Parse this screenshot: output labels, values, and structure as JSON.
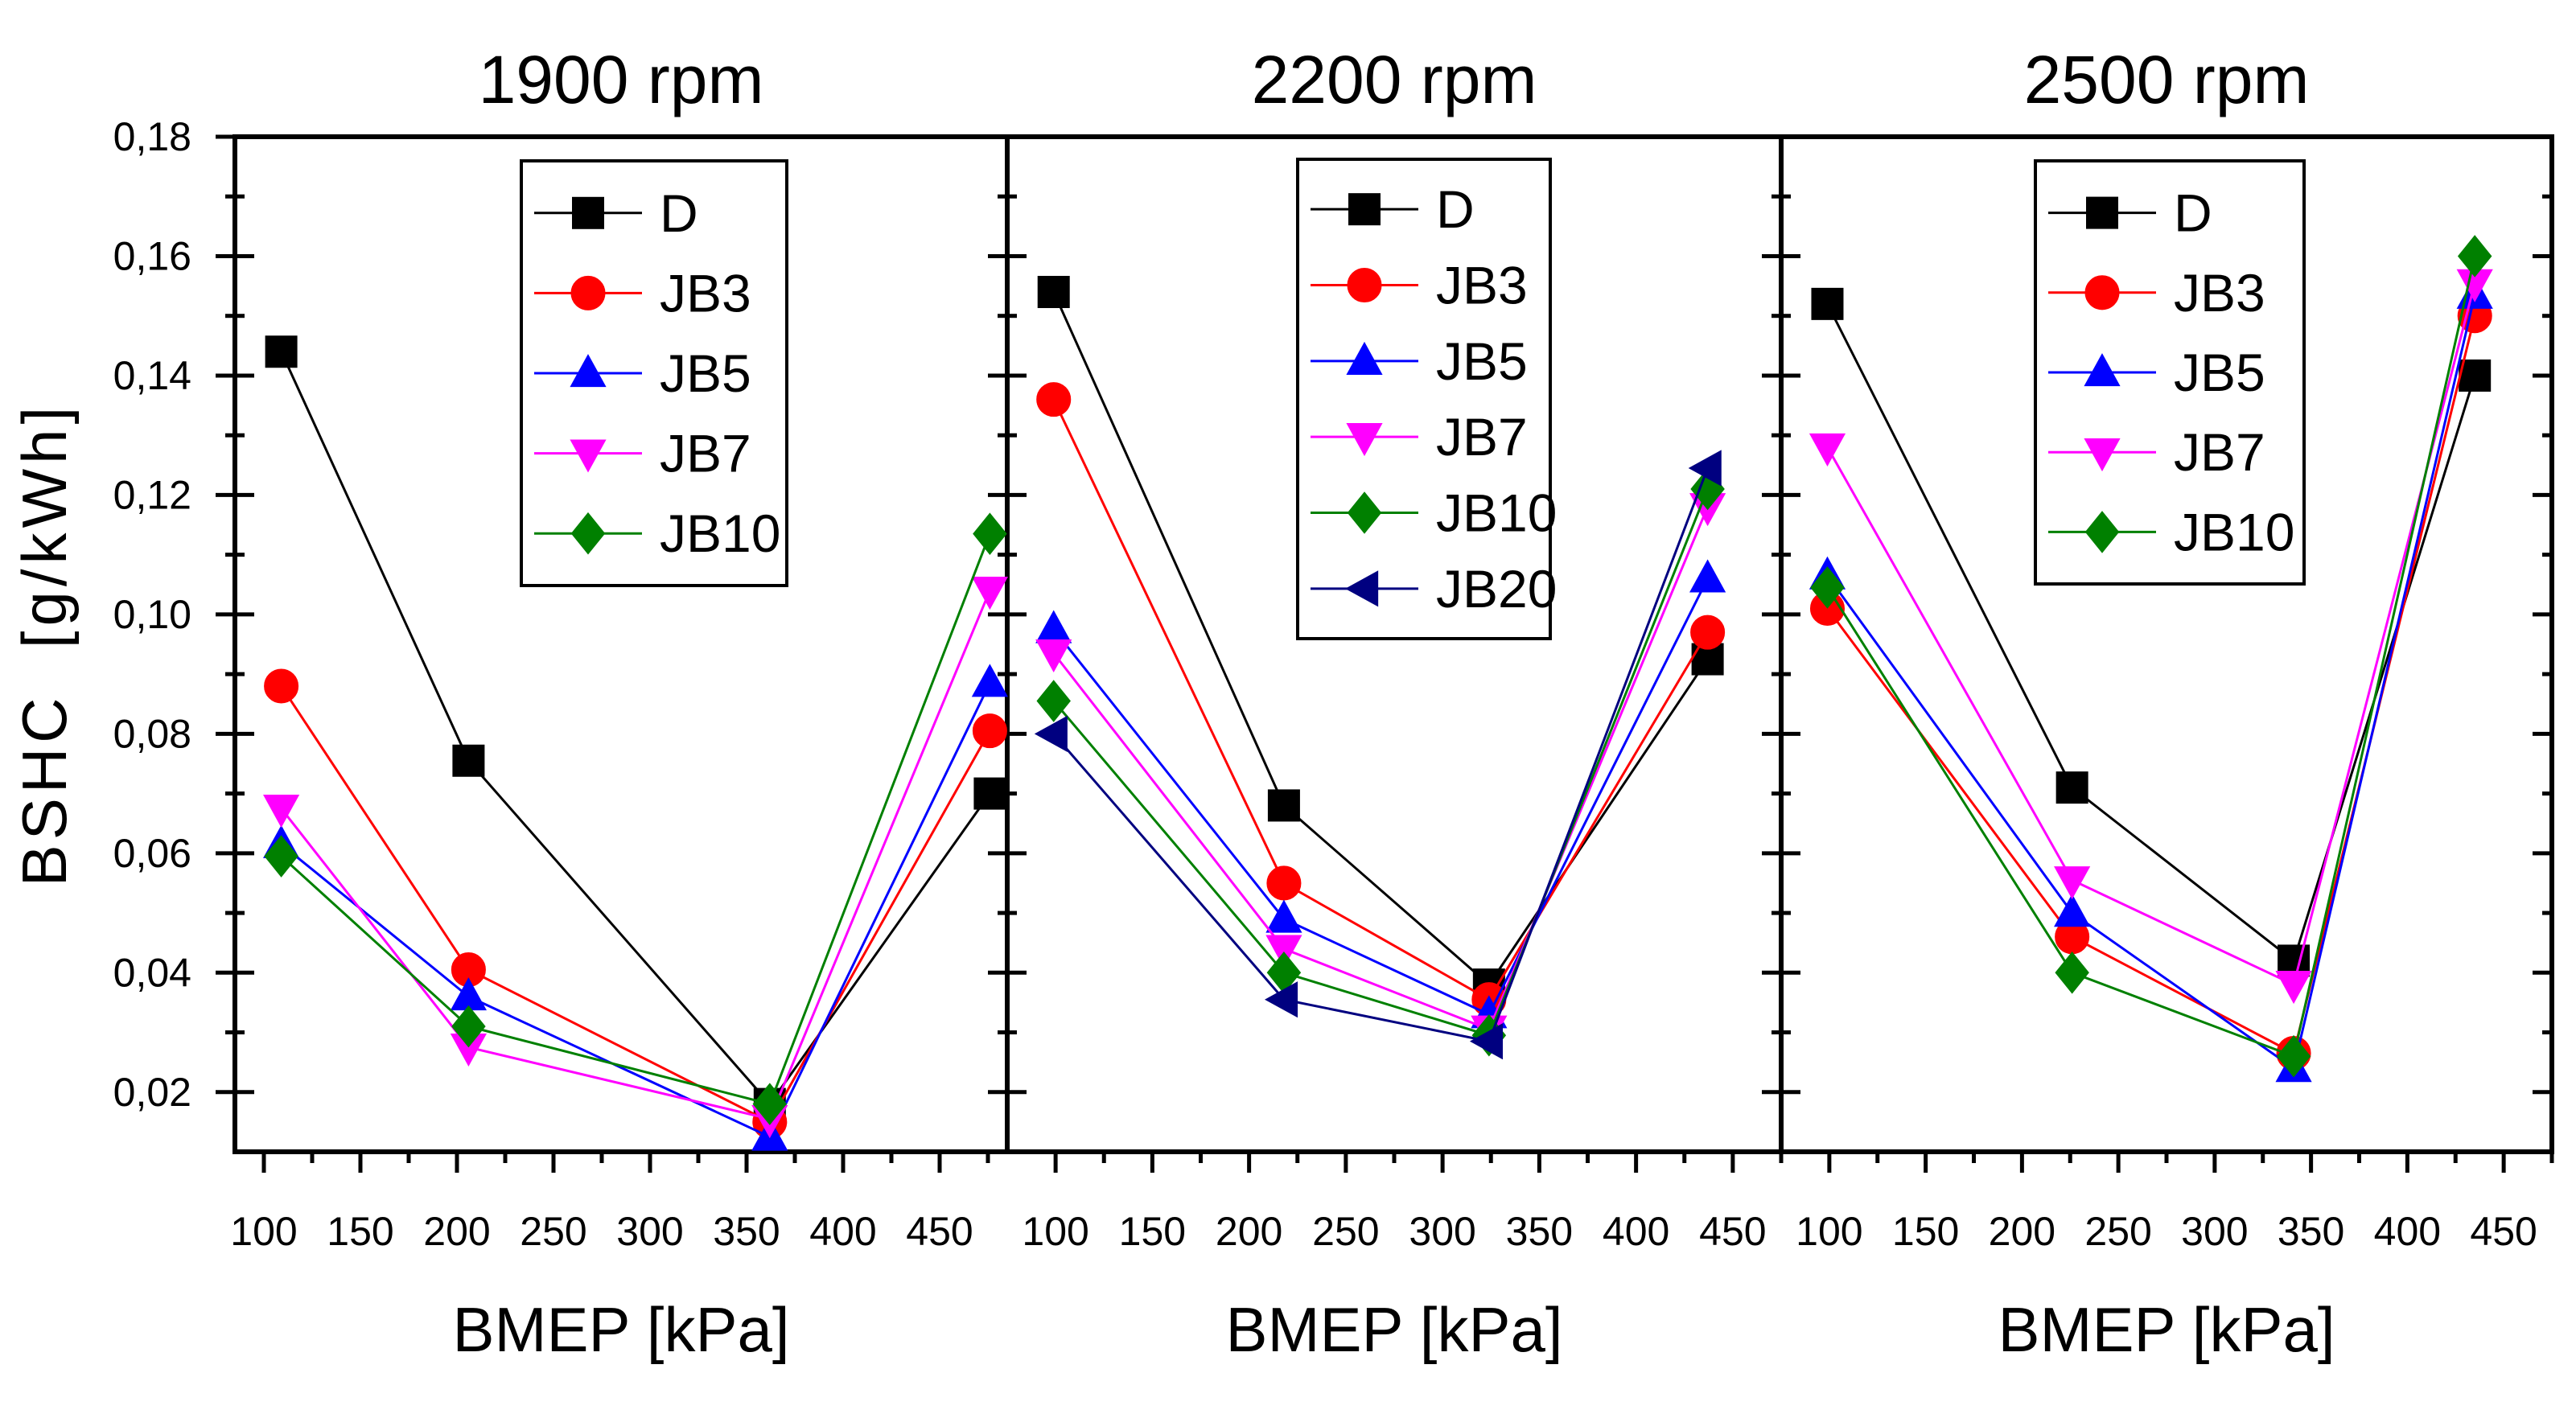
{
  "chart_data": {
    "type": "line",
    "ylabel": "BSHC  [g/kWh]",
    "xlabel": "BMEP [kPa]",
    "ylim": [
      0.01,
      0.18
    ],
    "yticks": [
      "0,02",
      "0,04",
      "0,06",
      "0,08",
      "0,10",
      "0,12",
      "0,14",
      "0,16",
      "0,18"
    ],
    "xticks": [
      "100",
      "150",
      "200",
      "250",
      "300",
      "350",
      "400",
      "450"
    ],
    "legend_placement": "top-center",
    "series_colors": {
      "D": "#000000",
      "JB3": "#ff0000",
      "JB5": "#0000ff",
      "JB7": "#ff00ff",
      "JB10": "#008000",
      "JB20": "#000080"
    },
    "series_markers": {
      "D": "square",
      "JB3": "circle",
      "JB5": "triangle-up",
      "JB7": "triangle-down",
      "JB10": "diamond",
      "JB20": "triangle-left"
    },
    "panels": [
      {
        "title": "1900 rpm",
        "xlim": [
          85,
          485
        ],
        "series": [
          {
            "name": "D",
            "x": [
              109,
              206,
              362,
              476
            ],
            "values": [
              0.144,
              0.0755,
              0.018,
              0.07
            ]
          },
          {
            "name": "JB3",
            "x": [
              109,
              206,
              362,
              476
            ],
            "values": [
              0.088,
              0.0405,
              0.015,
              0.0805
            ]
          },
          {
            "name": "JB5",
            "x": [
              109,
              206,
              362,
              476
            ],
            "values": [
              0.0615,
              0.036,
              0.0125,
              0.0885
            ]
          },
          {
            "name": "JB7",
            "x": [
              109,
              206,
              362,
              476
            ],
            "values": [
              0.0675,
              0.0275,
              0.0155,
              0.104
            ]
          },
          {
            "name": "JB10",
            "x": [
              109,
              206,
              362,
              476
            ],
            "values": [
              0.0595,
              0.031,
              0.018,
              0.1135
            ]
          }
        ]
      },
      {
        "title": "2200 rpm",
        "xlim": [
          75,
          475
        ],
        "series": [
          {
            "name": "D",
            "x": [
              99,
              218,
              324,
              437
            ],
            "values": [
              0.154,
              0.068,
              0.038,
              0.0925
            ]
          },
          {
            "name": "JB3",
            "x": [
              99,
              218,
              324,
              437
            ],
            "values": [
              0.136,
              0.055,
              0.0355,
              0.097
            ]
          },
          {
            "name": "JB5",
            "x": [
              99,
              218,
              324,
              437
            ],
            "values": [
              0.0975,
              0.049,
              0.033,
              0.106
            ]
          },
          {
            "name": "JB7",
            "x": [
              99,
              218,
              324,
              437
            ],
            "values": [
              0.0935,
              0.044,
              0.0305,
              0.118
            ]
          },
          {
            "name": "JB10",
            "x": [
              99,
              218,
              324,
              437
            ],
            "values": [
              0.0855,
              0.04,
              0.0295,
              0.121
            ]
          },
          {
            "name": "JB20",
            "x": [
              99,
              218,
              324,
              437
            ],
            "values": [
              0.08,
              0.0355,
              0.0285,
              0.1245
            ]
          }
        ]
      },
      {
        "title": "2500 rpm",
        "xlim": [
          75,
          475
        ],
        "series": [
          {
            "name": "D",
            "x": [
              99,
              226,
              341,
              435
            ],
            "values": [
              0.152,
              0.071,
              0.042,
              0.14
            ]
          },
          {
            "name": "JB3",
            "x": [
              99,
              226,
              341,
              435
            ],
            "values": [
              0.101,
              0.046,
              0.0265,
              0.15
            ]
          },
          {
            "name": "JB5",
            "x": [
              99,
              226,
              341,
              435
            ],
            "values": [
              0.1065,
              0.05,
              0.024,
              0.1535
            ]
          },
          {
            "name": "JB7",
            "x": [
              99,
              226,
              341,
              435
            ],
            "values": [
              0.128,
              0.0555,
              0.038,
              0.1555
            ]
          },
          {
            "name": "JB10",
            "x": [
              99,
              226,
              341,
              435
            ],
            "values": [
              0.1045,
              0.04,
              0.026,
              0.16
            ]
          }
        ]
      }
    ]
  }
}
